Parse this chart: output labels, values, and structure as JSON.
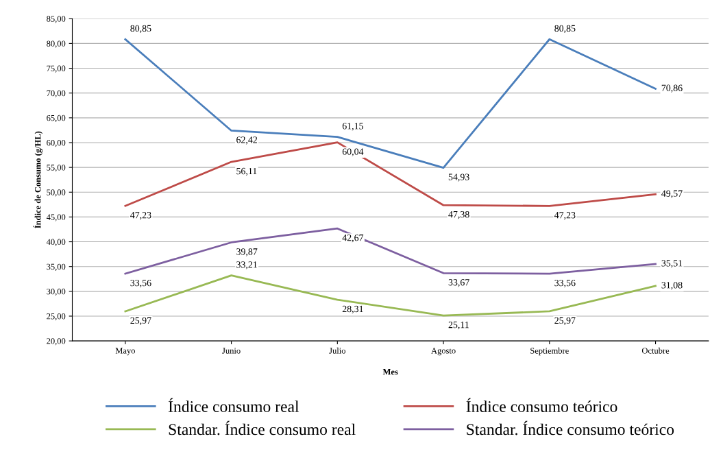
{
  "chart_data": {
    "type": "line",
    "xlabel": "Mes",
    "ylabel": "Índice de Consumo (g/HL)",
    "categories": [
      "Mayo",
      "Junio",
      "Julio",
      "Agosto",
      "Septiembre",
      "Octubre"
    ],
    "ylim": [
      20,
      85
    ],
    "yticks": [
      {
        "value": 20,
        "label": "20,00"
      },
      {
        "value": 25,
        "label": "25,00"
      },
      {
        "value": 30,
        "label": "30,00"
      },
      {
        "value": 35,
        "label": "35,00"
      },
      {
        "value": 40,
        "label": "40,00"
      },
      {
        "value": 45,
        "label": "45,00"
      },
      {
        "value": 50,
        "label": "50,00"
      },
      {
        "value": 55,
        "label": "55,00"
      },
      {
        "value": 60,
        "label": "60,00"
      },
      {
        "value": 65,
        "label": "65,00"
      },
      {
        "value": 70,
        "label": "70,00"
      },
      {
        "value": 75,
        "label": "75,00"
      },
      {
        "value": 80,
        "label": "80,00"
      },
      {
        "value": 85,
        "label": "85,00"
      }
    ],
    "grid": "y",
    "legend": "bottom",
    "marker": "none",
    "line_style": "solid",
    "series": [
      {
        "name": "Índice consumo real",
        "color": "#4a7ebb",
        "values": [
          80.85,
          62.42,
          61.15,
          54.93,
          80.85,
          70.86
        ],
        "value_labels": [
          "80,85",
          "62,42",
          "61,15",
          "54,93",
          "80,85",
          "70,86"
        ]
      },
      {
        "name": "Índice consumo teórico",
        "color": "#be4b48",
        "values": [
          47.23,
          56.11,
          60.04,
          47.38,
          47.23,
          49.57
        ],
        "value_labels": [
          "47,23",
          "56,11",
          "60,04",
          "47,38",
          "47,23",
          "49,57"
        ]
      },
      {
        "name": "Standar. Índice consumo real",
        "color": "#98b954",
        "values": [
          25.97,
          33.21,
          28.31,
          25.11,
          25.97,
          31.08
        ],
        "value_labels": [
          "25,97",
          "33,21",
          "28,31",
          "25,11",
          "25,97",
          "31,08"
        ]
      },
      {
        "name": "Standar. Índice consumo teórico",
        "color": "#7d5fa0",
        "values": [
          33.56,
          39.87,
          42.67,
          33.67,
          33.56,
          35.51
        ],
        "value_labels": [
          "33,56",
          "39,87",
          "42,67",
          "33,67",
          "33,56",
          "35,51"
        ]
      }
    ]
  }
}
